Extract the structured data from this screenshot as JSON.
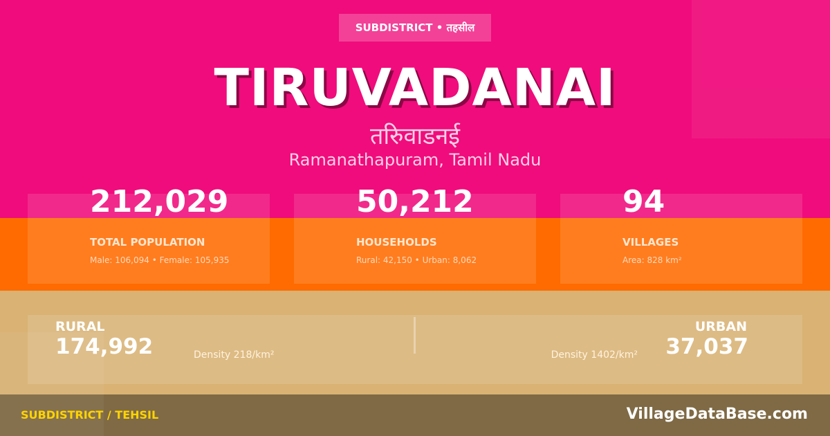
{
  "colors": {
    "primary": "#F00C7C",
    "secondary": "#FF6B00",
    "tertiary": "#D9B274",
    "footer": "#7F6A45",
    "accent": "#FFD400"
  },
  "badge": "SUBDISTRICT • तहसील",
  "title": "TIRUVADANAI",
  "title_hindi": "तरिुवाडनई",
  "location": "Ramanathapuram, Tamil Nadu",
  "stats": [
    {
      "value": "212,029",
      "label": "TOTAL POPULATION",
      "sub": "Male: 106,094 • Female: 105,935"
    },
    {
      "value": "50,212",
      "label": "HOUSEHOLDS",
      "sub": "Rural: 42,150 • Urban: 8,062"
    },
    {
      "value": "94",
      "label": "VILLAGES",
      "sub": "Area: 828 km²"
    }
  ],
  "rural": {
    "label": "RURAL",
    "value": "174,992",
    "density": "Density 218/km²"
  },
  "urban": {
    "label": "URBAN",
    "value": "37,037",
    "density": "Density 1402/km²"
  },
  "footer": {
    "left": "SUBDISTRICT / TEHSIL",
    "right": "VillageDataBase.com"
  }
}
